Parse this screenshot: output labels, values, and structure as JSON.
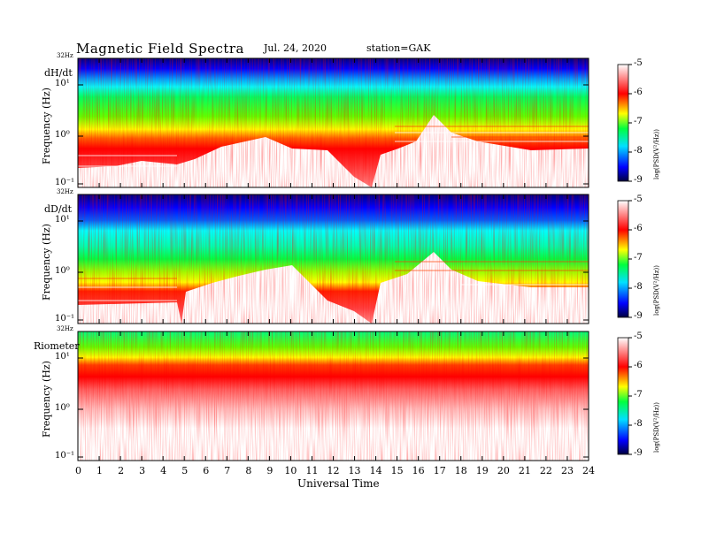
{
  "header": {
    "title": "Magnetic Field Spectra",
    "date": "Jul. 24, 2020",
    "station": "station=GAK"
  },
  "colors": {
    "scale": [
      "#000060",
      "#0000ff",
      "#00ffff",
      "#00ff00",
      "#ffff00",
      "#ff0000",
      "#ffffff"
    ]
  },
  "chart_data": [
    {
      "type": "heatmap",
      "panel_label": "dH/dt",
      "ylabel": "Frequency (Hz)",
      "y_top_label": "32Hz",
      "yticks": [
        "10¹",
        "10⁰",
        "10⁻¹"
      ],
      "x_range": [
        0,
        24
      ],
      "colorbar": {
        "label": "log(PSD(V²/Hz))",
        "ticks": [
          "-5",
          "-6",
          "-7",
          "-8",
          "-9"
        ],
        "range": [
          -9,
          -5
        ]
      }
    },
    {
      "type": "heatmap",
      "panel_label": "dD/dt",
      "ylabel": "Frequency (Hz)",
      "y_top_label": "32Hz",
      "yticks": [
        "10¹",
        "10⁰",
        "10⁻¹"
      ],
      "x_range": [
        0,
        24
      ],
      "colorbar": {
        "label": "log(PSD(V²/Hz))",
        "ticks": [
          "-5",
          "-6",
          "-7",
          "-8",
          "-9"
        ],
        "range": [
          -9,
          -5
        ]
      }
    },
    {
      "type": "heatmap",
      "panel_label": "Riometer",
      "ylabel": "Frequency (Hz)",
      "y_top_label": "32Hz",
      "yticks": [
        "10¹",
        "10⁰",
        "10⁻¹"
      ],
      "x_range": [
        0,
        24
      ],
      "xlabel": "Universal Time",
      "xticks": [
        "0",
        "1",
        "2",
        "3",
        "4",
        "5",
        "6",
        "7",
        "8",
        "9",
        "10",
        "11",
        "12",
        "13",
        "14",
        "15",
        "16",
        "17",
        "18",
        "19",
        "20",
        "21",
        "22",
        "23",
        "24"
      ],
      "colorbar": {
        "label": "log(PSD(V²/Hz))",
        "ticks": [
          "-5",
          "-6",
          "-7",
          "-8",
          "-9"
        ],
        "range": [
          -9,
          -5
        ]
      }
    }
  ]
}
